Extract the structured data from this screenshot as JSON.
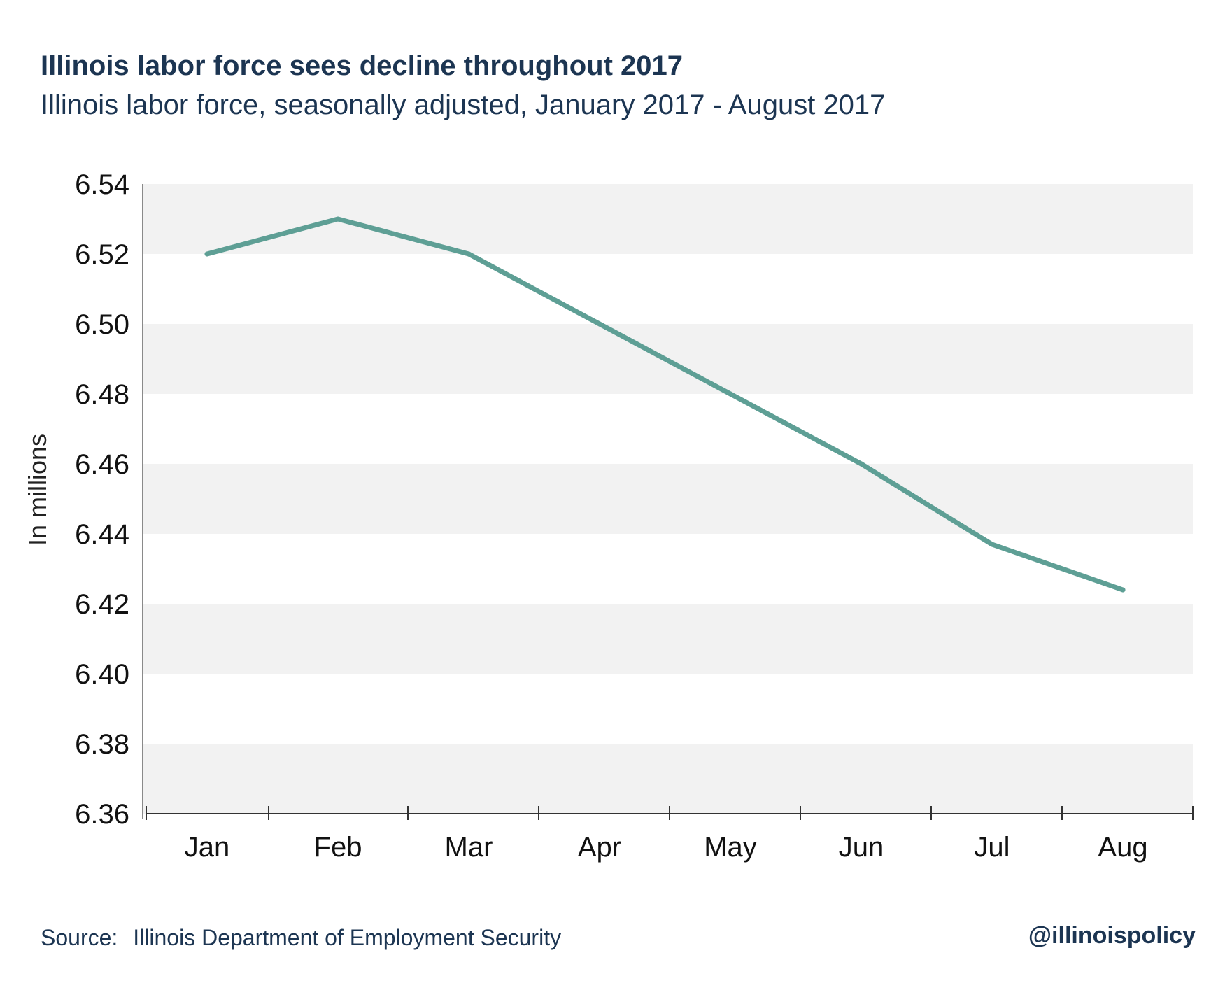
{
  "header": {
    "title": "Illinois labor force sees decline throughout 2017",
    "subtitle": "Illinois labor force, seasonally adjusted, January 2017 - August 2017"
  },
  "footer": {
    "source_label": "Source:",
    "source_text": "Illinois Department of Employment Security",
    "handle": "@illinoispolicy"
  },
  "colors": {
    "line": "#5e9f95",
    "band": "#f2f2f2",
    "axis": "#333333",
    "title_text": "#1c3552"
  },
  "chart_data": {
    "type": "line",
    "categories": [
      "Jan",
      "Feb",
      "Mar",
      "Apr",
      "May",
      "Jun",
      "Jul",
      "Aug"
    ],
    "series": [
      {
        "values": [
          6.52,
          6.53,
          6.52,
          6.5,
          6.48,
          6.46,
          6.437,
          6.424
        ]
      }
    ],
    "ylabel": "In millions",
    "ylim": [
      6.36,
      6.54
    ],
    "yticks": [
      "6.54",
      "6.52",
      "6.50",
      "6.48",
      "6.46",
      "6.44",
      "6.42",
      "6.40",
      "6.38",
      "6.36"
    ],
    "grid": "alternating horizontal bands",
    "legend": "none"
  }
}
